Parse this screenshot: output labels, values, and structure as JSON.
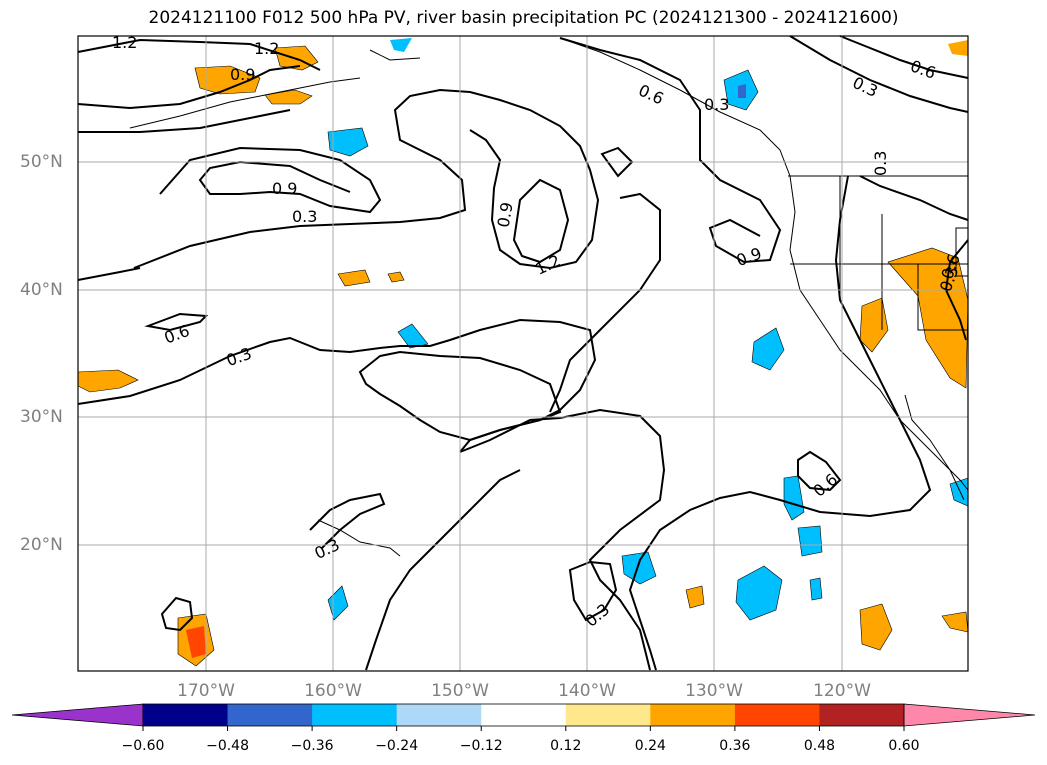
{
  "title": "2024121100 F012 500 hPa PV, river basin precipitation PC (2024121300 - 2024121600)",
  "lat_labels": [
    "50°N",
    "40°N",
    "30°N",
    "20°N"
  ],
  "lon_labels": [
    "170°W",
    "160°W",
    "150°W",
    "140°W",
    "130°W",
    "120°W"
  ],
  "contour_labels": [
    "1.2",
    "1.2",
    "0.9",
    "0.9",
    "0.3",
    "0.9",
    "1.2",
    "0.6",
    "0.3",
    "0.6",
    "0.3",
    "0.3",
    "0.9",
    "0.3",
    "0.6",
    "0.3",
    "0.3",
    "0.6",
    "0.3",
    "0.6"
  ],
  "colorbar": {
    "ticks": [
      "−0.60",
      "−0.48",
      "−0.36",
      "−0.24",
      "−0.12",
      "0.12",
      "0.24",
      "0.36",
      "0.48",
      "0.60"
    ],
    "colors": [
      "#9933cc",
      "#00008b",
      "#3366cc",
      "#00bfff",
      "#add8f7",
      "#ffffff",
      "#ffe88c",
      "#ffa500",
      "#ff4500",
      "#b22222",
      "#ff88aa"
    ]
  }
}
